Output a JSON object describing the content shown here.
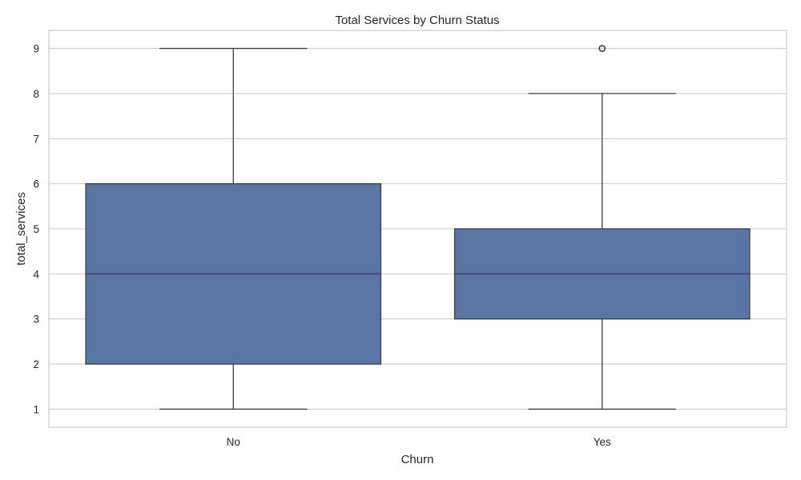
{
  "chart_data": {
    "type": "box",
    "title": "Total Services by Churn Status",
    "xlabel": "Churn",
    "ylabel": "total_services",
    "categories": [
      "No",
      "Yes"
    ],
    "ylim": [
      0.6,
      9.4
    ],
    "yticks": [
      1,
      2,
      3,
      4,
      5,
      6,
      7,
      8,
      9
    ],
    "grid": true,
    "box_color": "#5875a4",
    "line_color": "#3f3f3f",
    "grid_color": "#cccccc",
    "boxes": [
      {
        "category": "No",
        "whisker_low": 1,
        "q1": 2,
        "median": 4,
        "q3": 6,
        "whisker_high": 9,
        "outliers": []
      },
      {
        "category": "Yes",
        "whisker_low": 1,
        "q1": 3,
        "median": 4,
        "q3": 5,
        "whisker_high": 8,
        "outliers": [
          9
        ]
      }
    ]
  }
}
